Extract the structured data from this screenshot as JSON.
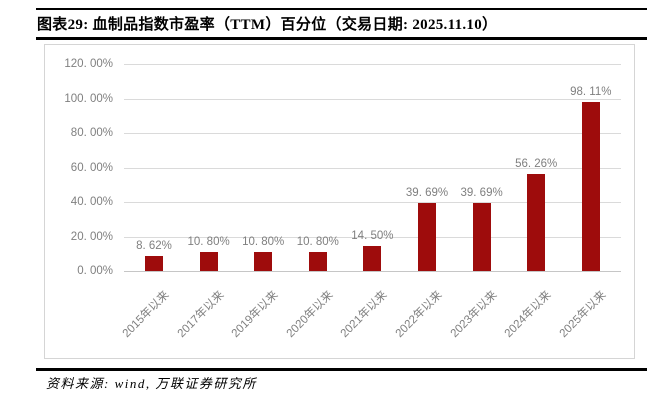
{
  "header": {
    "title": "图表29: 血制品指数市盈率（TTM）百分位（交易日期: 2025.11.10）"
  },
  "footer": {
    "source": "资料来源: wind, 万联证券研究所"
  },
  "chart_data": {
    "type": "bar",
    "title": "血制品指数市盈率（TTM）百分位（交易日期: 2025.11.10）",
    "categories": [
      "2015年以来",
      "2017年以来",
      "2019年以来",
      "2020年以来",
      "2021年以来",
      "2022年以来",
      "2023年以来",
      "2024年以来",
      "2025年以来"
    ],
    "values": [
      8.62,
      10.8,
      10.8,
      10.8,
      14.5,
      39.69,
      39.69,
      56.26,
      98.11
    ],
    "value_labels": [
      "8. 62%",
      "10. 80%",
      "10. 80%",
      "10. 80%",
      "14. 50%",
      "39. 69%",
      "39. 69%",
      "56. 26%",
      "98. 11%"
    ],
    "xlabel": "",
    "ylabel": "",
    "ylim": [
      0,
      120
    ],
    "yticks": [
      0,
      20,
      40,
      60,
      80,
      100,
      120
    ],
    "ytick_labels": [
      "0. 00%",
      "20. 00%",
      "40. 00%",
      "60. 00%",
      "80. 00%",
      "100. 00%",
      "120. 00%"
    ],
    "grid": true,
    "legend_position": "none",
    "bar_color": "#9e0c0c",
    "grid_color": "#dadada",
    "axis_line_color": "#c6c6c6",
    "text_color": "#7f7f7f"
  }
}
